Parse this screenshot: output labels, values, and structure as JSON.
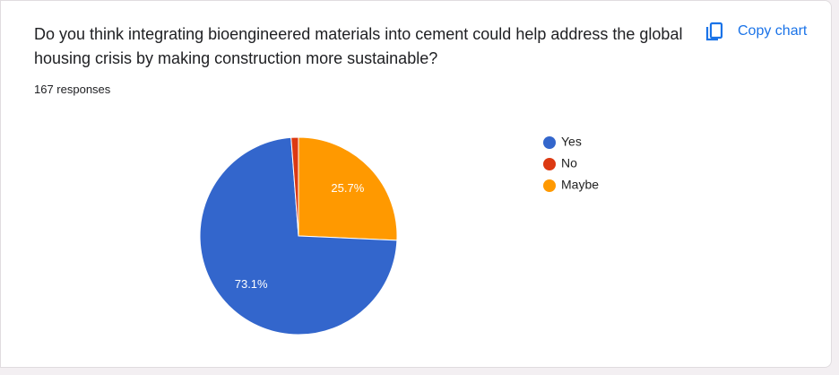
{
  "chart_data": {
    "type": "pie",
    "title": "Do you think integrating bioengineered materials into cement could help address the global housing crisis by making construction more sustainable?",
    "subtitle": "167 responses",
    "categories": [
      "Yes",
      "No",
      "Maybe"
    ],
    "values": [
      73.1,
      1.2,
      25.7
    ],
    "value_labels": [
      "73.1%",
      null,
      "25.7%"
    ],
    "colors": [
      "#3366cc",
      "#dc3912",
      "#ff9900"
    ],
    "legend": "right"
  },
  "ui": {
    "copy_button": "Copy chart"
  }
}
